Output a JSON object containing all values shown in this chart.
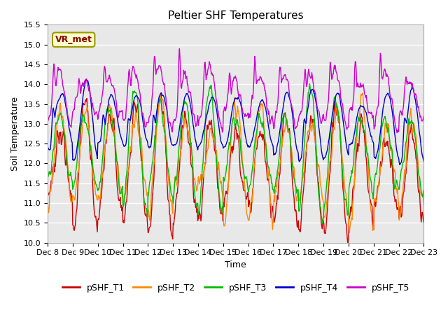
{
  "title": "Peltier SHF Temperatures",
  "ylabel": "Soil Temperature",
  "xlabel": "Time",
  "ylim": [
    10.0,
    15.5
  ],
  "yticks": [
    10.0,
    10.5,
    11.0,
    11.5,
    12.0,
    12.5,
    13.0,
    13.5,
    14.0,
    14.5,
    15.0,
    15.5
  ],
  "xtick_labels": [
    "Dec 8",
    "Dec 9",
    "Dec 10",
    "Dec 11",
    "Dec 12",
    "Dec 13",
    "Dec 14",
    "Dec 15",
    "Dec 16",
    "Dec 17",
    "Dec 18",
    "Dec 19",
    "Dec 20",
    "Dec 21",
    "Dec 22",
    "Dec 23"
  ],
  "colors": {
    "pSHF_T1": "#cc0000",
    "pSHF_T2": "#ff8800",
    "pSHF_T3": "#00bb00",
    "pSHF_T4": "#0000cc",
    "pSHF_T5": "#cc00cc"
  },
  "annotation": "VR_met",
  "bg_color": "#e8e8e8",
  "title_fontsize": 11,
  "axis_label_fontsize": 9,
  "tick_fontsize": 8,
  "legend_fontsize": 9
}
